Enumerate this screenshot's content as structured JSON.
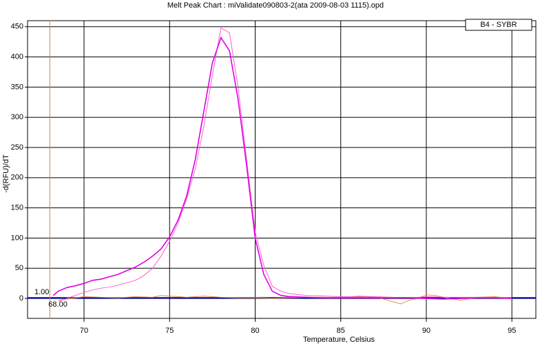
{
  "chart_data": {
    "type": "line",
    "title": "Melt Peak Chart : miValidate090803-2(ata 2009-08-03 1115).opd",
    "x_label": "Temperature, Celsius",
    "y_label": "-d(RFU)/dT",
    "legend": "B4 - SYBR",
    "xlim": [
      66.7,
      96.4
    ],
    "ylim": [
      -33,
      460
    ],
    "xticks": [
      70,
      75,
      80,
      85,
      90,
      95
    ],
    "yticks": [
      0,
      50,
      100,
      150,
      200,
      250,
      300,
      350,
      400,
      450
    ],
    "grid": true,
    "threshold": {
      "value": 1,
      "label": "1.00",
      "color": "#0000cc"
    },
    "begin_marker": {
      "value": 68,
      "label": "68.00",
      "color": "#e08040"
    },
    "series": [
      {
        "color": "#e8903c",
        "x": [
          68.5,
          69,
          70,
          71,
          72,
          73,
          74,
          74.5,
          75,
          76,
          77,
          78,
          79,
          80,
          81,
          82,
          83,
          84,
          85,
          86,
          87,
          88,
          88.5,
          89,
          89.5,
          90,
          90.5,
          91,
          92,
          93,
          94,
          95
        ],
        "values": [
          -3,
          -1,
          3,
          2,
          1,
          3,
          2,
          5,
          4,
          2,
          4,
          2,
          1,
          1,
          0,
          1,
          2,
          2,
          1,
          4,
          3,
          -5,
          -9,
          -3,
          0,
          6,
          5,
          2,
          -3,
          2,
          3,
          0
        ]
      },
      {
        "color": "#ff5ad2",
        "x": [
          68.5,
          69,
          69.5,
          70,
          70.5,
          71,
          71.5,
          72,
          72.5,
          73,
          73.5,
          74,
          74.5,
          75,
          75.5,
          76,
          76.5,
          77,
          77.5,
          78,
          78.5,
          79,
          79.5,
          80,
          80.5,
          81,
          81.5,
          82,
          83,
          84,
          85,
          86,
          87,
          88,
          89,
          90,
          91,
          92,
          93,
          94,
          95
        ],
        "values": [
          -5,
          0,
          5,
          10,
          14,
          17,
          19,
          22,
          26,
          30,
          38,
          50,
          70,
          95,
          125,
          165,
          215,
          285,
          370,
          448,
          440,
          350,
          230,
          110,
          55,
          20,
          12,
          8,
          5,
          4,
          3,
          3,
          3,
          2,
          1,
          3,
          2,
          2,
          2,
          2,
          1
        ]
      },
      {
        "color": "#e000e0",
        "x": [
          68.2,
          68.5,
          69,
          69.5,
          70,
          70.5,
          71,
          71.5,
          72,
          72.5,
          73,
          73.5,
          74,
          74.5,
          75,
          75.5,
          76,
          76.5,
          77,
          77.5,
          78,
          78.5,
          79,
          79.5,
          80,
          80.5,
          81,
          81.5,
          82,
          83,
          84,
          85,
          86,
          87,
          88,
          89,
          90,
          91,
          92,
          93,
          94,
          95
        ],
        "values": [
          5,
          12,
          18,
          21,
          25,
          30,
          32,
          36,
          40,
          46,
          52,
          60,
          70,
          82,
          102,
          130,
          170,
          230,
          310,
          390,
          432,
          410,
          330,
          220,
          100,
          40,
          12,
          5,
          3,
          2,
          1,
          1,
          1,
          1,
          1,
          1,
          0,
          -1,
          0,
          1,
          1,
          0
        ]
      }
    ]
  }
}
